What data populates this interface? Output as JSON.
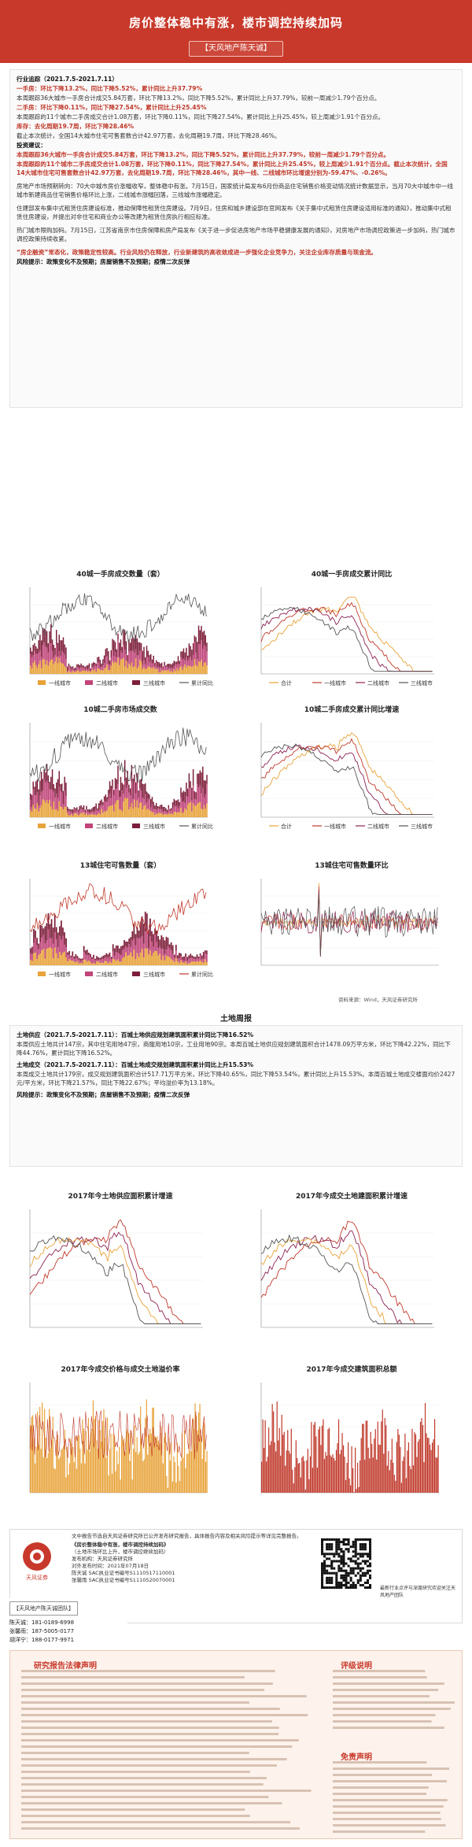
{
  "header": {
    "title": "房价整体稳中有涨，楼市调控持续加码",
    "tag": "【天风地产陈天诚】"
  },
  "report": {
    "line1": "行业追踪（2021.7.5-2021.7.11）",
    "line2": "一手房：环比下降13.2%，同比下降5.52%，累计同比上升37.79%",
    "line3": "本周跟踪36大城市一手房合计成交5.84万套，环比下降13.2%，同比下降5.52%，累计同比上升37.79%，较前一周减少1.79个百分点。",
    "line4": "二手房：环比下降0.11%，同比下降27.54%，累计同比上升25.45%",
    "line5": "本周跟踪的11个城市二手房成交合计1.08万套，环比下降0.11%，同比下降27.54%，累计同比上升25.45%，较上周减少1.91个百分点。",
    "line6": "库存：去化周期19.7周，环比下降28.46%",
    "line7": "截止本次统计，全国14大城市住宅可售套数合计42.97万套，去化周期19.7周，环比下降28.46%。",
    "line8": "投资建议：",
    "line9": "本周跟踪36大城市一手房合计成交5.84万套，环比下降13.2%，同比下降5.52%，累计同比上升37.79%，较前一周减少1.79个百分点。",
    "line10": "本周跟踪的11个城市二手房成交合计1.08万套，环比下降0.11%，同比下降27.54%，累计同比上升25.45%，较上周减少1.91个百分点。截止本次统计，全国14大城市住宅可售套数合计42.97万套，去化周期19.7周，环比下降28.46%，其中一线、二线城市环比增速分别为-59.47%、-0.26%。",
    "line11": "房地产市场预期转向：70大中城市房价涨幅收窄，整体稳中有涨。7月15日，国家统计局发布6月份商品住宅销售价格变动情况统计数据显示，当月70大中城市中一线城市新建商品住宅销售价格环比上涨，二线城市涨幅回落，三线城市涨幅稳定。",
    "line12": "住建部发布集中式租赁住房建设标准，推动保障性租赁住房建设。7月9日，住房和城乡建设部在官网发布《关于集中式租赁住房建设适用标准的通知》，推动集中式租赁住房建设，并提出对非住宅和商业办公等改建为租赁住房执行相应标准。",
    "line13": "热门城市限购加码。7月15日，江苏省南京市住房保障和房产局发布《关于进一步促进房地产市场平稳健康发展的通知》，对房地产市场调控政策进一步加码，热门城市调控政策持续收紧。",
    "line14": "“房企融资”常态化，政策稳定性较高。行业风险仍在释放，行业新建筑的高收敛成进一步强化企业竞争力，关注企业库存质量与现金流。",
    "line15": "风险提示：政策变化不及预期；房屋销售不及预期；疫情二次反弹"
  },
  "charts_top": [
    {
      "title": "40城一手房成交数量（套）"
    },
    {
      "title": "40城一手房成交累计同比"
    },
    {
      "title": "10城二手房市场成交数"
    },
    {
      "title": "10城二手房成交累计同比增速"
    },
    {
      "title": "13城住宅可售数量（套）"
    },
    {
      "title": "13城住宅可售数量环比"
    }
  ],
  "legend": {
    "tier1": "一线城市",
    "tier2": "二线城市",
    "tier3": "三线城市",
    "total": "累计同比",
    "sum": "合计",
    "source": "资料来源：Wind，天风证券研究所"
  },
  "land": {
    "title": "土地周报",
    "p1": "土地供应（2021.7.5-2021.7.11）：百城土地供应规划建筑面积累计同比下降16.52%",
    "p2": "本周供应土地共计147宗，其中住宅用地47宗，商服用地10宗，工业用地90宗。本周百城土地供应规划建筑面积合计1478.09万平方米，环比下降42.22%，同比下降44.76%，累计同比下降16.52%。",
    "p3": "土地成交（2021.7.5-2021.7.11）：百城土地成交规划建筑面积累计同比上升15.53%",
    "p4": "本周成交土地共计179宗，成交规划建筑面积合计517.71万平方米，环比下降40.65%，同比下降53.54%，累计同比上升15.53%。本周百城土地成交楼面均价2427元/平方米，环比下降21.57%，同比下降22.67%；平均溢价率为13.18%。",
    "p5": "风险提示：政策变化不及预期；房屋销售不及预期；疫情二次反弹"
  },
  "charts_land": [
    {
      "title": "2017年今土地供应面积累计增速"
    },
    {
      "title": "2017年今成交土地建面积累计增速"
    },
    {
      "title": "2017年今成交价格与成交土地溢价率"
    },
    {
      "title": "2017年今成交建筑面积总额"
    }
  ],
  "footer": {
    "disclaimer": "文中报告节选自天风证券研究所已公开发布研究报告，具体报告内容及相关风险提示等详见完整报告。",
    "report_title": "《房价整体稳中有涨，楼市调控持续加码》",
    "report_sub": "（土地市场环比上升，楼市调控继续加码）",
    "org": "发布机构：天风证券研究所",
    "date": "对外发布时间：2021年07月18日",
    "analyst1": "陈天诚 SAC执业证书编号S1110517110001",
    "analyst2": "张馨雨 SAC执业证书编号S1110520070001",
    "qr_caption": "最新行业点评与深度研究欢迎关注天风地产团队",
    "team": "【天风地产陈天诚团队】",
    "phone1_label": "陈天诚：",
    "phone1": "181-0189-6998",
    "phone2_label": "张馨雨：",
    "phone2": "187-5005-0177",
    "phone3_label": "胡洋宁：",
    "phone3": "188-0177-9971",
    "logo": "天风证券"
  },
  "legal": {
    "left_title": "研究报告法律声明",
    "right_title": "评级说明",
    "right_title2": "免责声明"
  }
}
